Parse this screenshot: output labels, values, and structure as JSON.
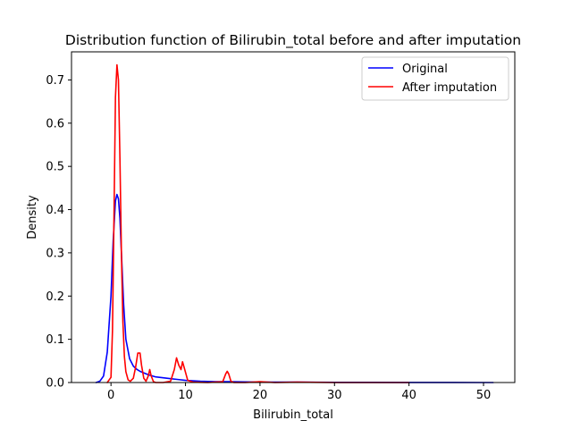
{
  "chart_data": {
    "type": "line",
    "title": "Distribution function of Bilirubin_total before and after imputation",
    "xlabel": "Bilirubin_total",
    "ylabel": "Density",
    "xlim": [
      -5.3,
      54.2
    ],
    "ylim": [
      0,
      0.765
    ],
    "xticks": [
      0,
      10,
      20,
      30,
      40,
      50
    ],
    "yticks": [
      0.0,
      0.1,
      0.2,
      0.3,
      0.4,
      0.5,
      0.6,
      0.7
    ],
    "grid": false,
    "legend_position": "top-right",
    "series": [
      {
        "name": "Original",
        "color": "#0000ff",
        "x": [
          -2.0,
          -1.5,
          -1.0,
          -0.5,
          0.0,
          0.3,
          0.6,
          0.8,
          1.0,
          1.2,
          1.4,
          1.7,
          2.0,
          2.5,
          3.0,
          3.5,
          4.0,
          5.0,
          6.0,
          7.0,
          8.0,
          9.0,
          10.0,
          11.0,
          12.0,
          14.0,
          16.0,
          18.0,
          20.0,
          25.0,
          30.0,
          35.0,
          40.0,
          45.0,
          50.0,
          51.3
        ],
        "y": [
          0.0,
          0.003,
          0.015,
          0.07,
          0.2,
          0.33,
          0.42,
          0.435,
          0.425,
          0.38,
          0.3,
          0.18,
          0.1,
          0.055,
          0.038,
          0.03,
          0.025,
          0.018,
          0.013,
          0.011,
          0.009,
          0.007,
          0.005,
          0.004,
          0.003,
          0.002,
          0.002,
          0.0015,
          0.001,
          0.0008,
          0.0005,
          0.0003,
          0.0002,
          0.0001,
          0.0,
          0.0
        ]
      },
      {
        "name": "After imputation",
        "color": "#ff0000",
        "x": [
          -0.5,
          0.0,
          0.2,
          0.4,
          0.6,
          0.8,
          1.0,
          1.2,
          1.4,
          1.6,
          1.8,
          2.0,
          2.3,
          2.6,
          3.0,
          3.3,
          3.6,
          3.9,
          4.1,
          4.4,
          4.7,
          5.0,
          5.2,
          5.4,
          5.7,
          6.0,
          7.0,
          8.0,
          8.5,
          8.8,
          9.1,
          9.4,
          9.6,
          9.9,
          10.3,
          11.0,
          13.0,
          15.0,
          15.4,
          15.6,
          15.8,
          16.1,
          16.5,
          18.0,
          20.0,
          22.0,
          25.0,
          30.0,
          35.0,
          40.0
        ],
        "y": [
          0.0,
          0.012,
          0.12,
          0.38,
          0.66,
          0.735,
          0.7,
          0.52,
          0.3,
          0.14,
          0.06,
          0.025,
          0.006,
          0.003,
          0.01,
          0.035,
          0.068,
          0.068,
          0.04,
          0.01,
          0.003,
          0.015,
          0.03,
          0.015,
          0.002,
          0.0,
          0.0,
          0.003,
          0.03,
          0.057,
          0.04,
          0.03,
          0.048,
          0.03,
          0.005,
          0.001,
          0.0,
          0.002,
          0.02,
          0.026,
          0.02,
          0.003,
          0.0,
          0.0,
          0.002,
          0.0,
          0.001,
          0.0,
          0.0,
          0.0
        ]
      }
    ]
  }
}
